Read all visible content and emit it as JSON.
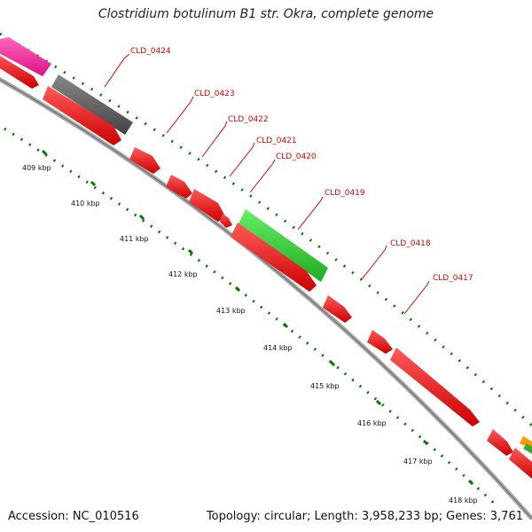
{
  "header": {
    "title": "Clostridium botulinum B1 str. Okra, complete genome"
  },
  "footer": {
    "accession": "Accession: NC_010516",
    "topology": "Topology: circular; Length: 3,958,233 bp; Genes: 3,761"
  },
  "ticks": [
    "409 kbp",
    "410 kbp",
    "411 kbp",
    "412 kbp",
    "413 kbp",
    "414 kbp",
    "415 kbp",
    "416 kbp",
    "417 kbp",
    "418 kbp"
  ],
  "gene_labels": [
    "CLD_0424",
    "CLD_0423",
    "CLD_0422",
    "CLD_0421",
    "CLD_0420",
    "CLD_0419",
    "CLD_0418",
    "CLD_0417"
  ],
  "colors": {
    "cds": "#ff0000",
    "rrna_like_gray": "#666666",
    "green_feature": "#33cc33",
    "magenta_feature": "#ff3399",
    "backbone": "#999999",
    "tick": "#007700"
  }
}
